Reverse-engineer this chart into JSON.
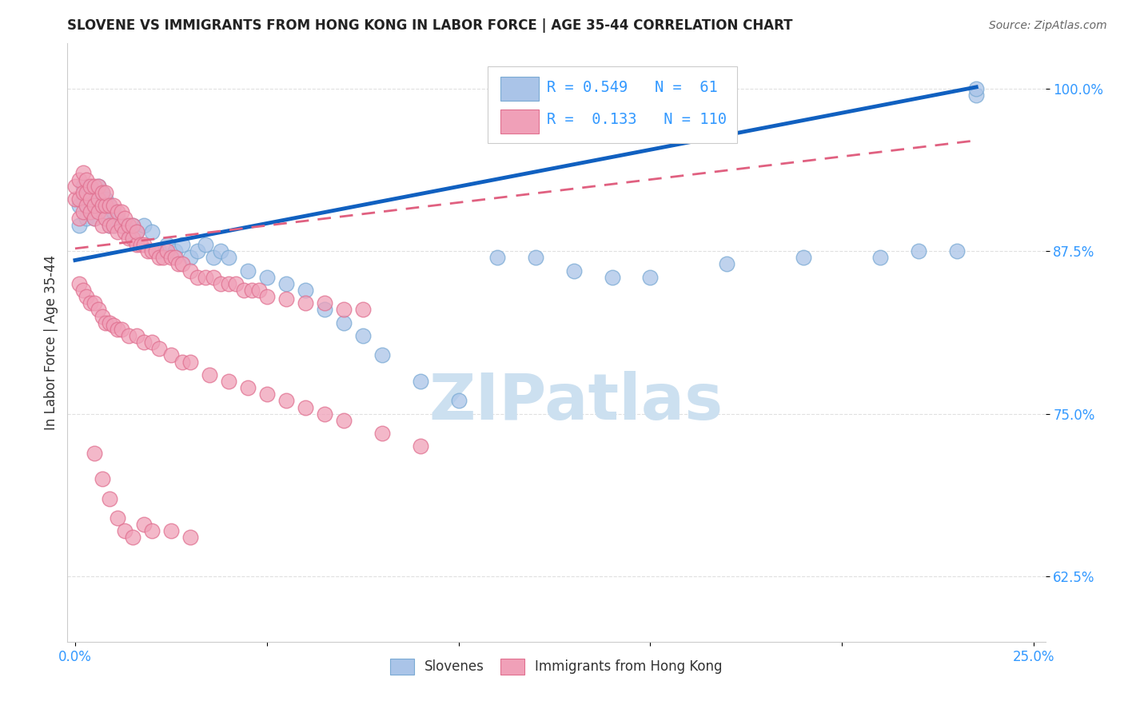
{
  "title": "SLOVENE VS IMMIGRANTS FROM HONG KONG IN LABOR FORCE | AGE 35-44 CORRELATION CHART",
  "source": "Source: ZipAtlas.com",
  "ylabel": "In Labor Force | Age 35-44",
  "xlim": [
    -0.002,
    0.253
  ],
  "ylim": [
    0.575,
    1.035
  ],
  "yticks": [
    0.625,
    0.75,
    0.875,
    1.0
  ],
  "ytick_labels": [
    "62.5%",
    "75.0%",
    "87.5%",
    "100.0%"
  ],
  "xticks": [
    0.0,
    0.05,
    0.1,
    0.15,
    0.2,
    0.25
  ],
  "xtick_labels": [
    "0.0%",
    "",
    "",
    "",
    "",
    "25.0%"
  ],
  "slovene_color": "#aac4e8",
  "slovene_edge": "#7aaad4",
  "hk_color": "#f0a0b8",
  "hk_edge": "#e07090",
  "trendline_slovene_color": "#1060c0",
  "trendline_hk_color": "#e06080",
  "background_color": "#ffffff",
  "grid_color": "#dddddd",
  "watermark_color": "#cce0f0",
  "tick_color": "#3399ff",
  "title_color": "#222222",
  "ylabel_color": "#333333",
  "source_color": "#666666",
  "slovene_x": [
    0.001,
    0.001,
    0.002,
    0.002,
    0.003,
    0.003,
    0.003,
    0.004,
    0.004,
    0.005,
    0.005,
    0.006,
    0.006,
    0.007,
    0.007,
    0.008,
    0.008,
    0.009,
    0.009,
    0.01,
    0.01,
    0.011,
    0.012,
    0.013,
    0.014,
    0.015,
    0.016,
    0.018,
    0.02,
    0.022,
    0.024,
    0.026,
    0.028,
    0.03,
    0.032,
    0.034,
    0.036,
    0.038,
    0.04,
    0.045,
    0.05,
    0.055,
    0.06,
    0.065,
    0.07,
    0.075,
    0.08,
    0.09,
    0.1,
    0.11,
    0.12,
    0.13,
    0.14,
    0.15,
    0.17,
    0.19,
    0.21,
    0.22,
    0.23,
    0.235,
    0.235
  ],
  "slovene_y": [
    0.895,
    0.91,
    0.915,
    0.925,
    0.9,
    0.91,
    0.92,
    0.905,
    0.915,
    0.9,
    0.92,
    0.91,
    0.925,
    0.905,
    0.92,
    0.9,
    0.915,
    0.895,
    0.91,
    0.895,
    0.905,
    0.9,
    0.895,
    0.895,
    0.89,
    0.895,
    0.89,
    0.895,
    0.89,
    0.875,
    0.88,
    0.875,
    0.88,
    0.87,
    0.875,
    0.88,
    0.87,
    0.875,
    0.87,
    0.86,
    0.855,
    0.85,
    0.845,
    0.83,
    0.82,
    0.81,
    0.795,
    0.775,
    0.76,
    0.87,
    0.87,
    0.86,
    0.855,
    0.855,
    0.865,
    0.87,
    0.87,
    0.875,
    0.875,
    0.995,
    1.0
  ],
  "hk_x": [
    0.0,
    0.0,
    0.001,
    0.001,
    0.001,
    0.002,
    0.002,
    0.002,
    0.003,
    0.003,
    0.003,
    0.004,
    0.004,
    0.004,
    0.005,
    0.005,
    0.005,
    0.006,
    0.006,
    0.006,
    0.007,
    0.007,
    0.007,
    0.008,
    0.008,
    0.008,
    0.009,
    0.009,
    0.01,
    0.01,
    0.011,
    0.011,
    0.012,
    0.012,
    0.013,
    0.013,
    0.014,
    0.014,
    0.015,
    0.015,
    0.016,
    0.016,
    0.017,
    0.018,
    0.019,
    0.02,
    0.021,
    0.022,
    0.023,
    0.024,
    0.025,
    0.026,
    0.027,
    0.028,
    0.03,
    0.032,
    0.034,
    0.036,
    0.038,
    0.04,
    0.042,
    0.044,
    0.046,
    0.048,
    0.05,
    0.055,
    0.06,
    0.065,
    0.07,
    0.075,
    0.001,
    0.002,
    0.003,
    0.004,
    0.005,
    0.006,
    0.007,
    0.008,
    0.009,
    0.01,
    0.011,
    0.012,
    0.014,
    0.016,
    0.018,
    0.02,
    0.022,
    0.025,
    0.028,
    0.03,
    0.035,
    0.04,
    0.045,
    0.05,
    0.055,
    0.06,
    0.065,
    0.07,
    0.08,
    0.09,
    0.005,
    0.007,
    0.009,
    0.011,
    0.013,
    0.015,
    0.018,
    0.02,
    0.025,
    0.03
  ],
  "hk_y": [
    0.915,
    0.925,
    0.9,
    0.915,
    0.93,
    0.905,
    0.92,
    0.935,
    0.91,
    0.92,
    0.93,
    0.905,
    0.915,
    0.925,
    0.9,
    0.91,
    0.925,
    0.905,
    0.915,
    0.925,
    0.895,
    0.91,
    0.92,
    0.9,
    0.91,
    0.92,
    0.895,
    0.91,
    0.895,
    0.91,
    0.89,
    0.905,
    0.895,
    0.905,
    0.89,
    0.9,
    0.885,
    0.895,
    0.885,
    0.895,
    0.88,
    0.89,
    0.88,
    0.88,
    0.875,
    0.875,
    0.875,
    0.87,
    0.87,
    0.875,
    0.87,
    0.87,
    0.865,
    0.865,
    0.86,
    0.855,
    0.855,
    0.855,
    0.85,
    0.85,
    0.85,
    0.845,
    0.845,
    0.845,
    0.84,
    0.838,
    0.835,
    0.835,
    0.83,
    0.83,
    0.85,
    0.845,
    0.84,
    0.835,
    0.835,
    0.83,
    0.825,
    0.82,
    0.82,
    0.818,
    0.815,
    0.815,
    0.81,
    0.81,
    0.805,
    0.805,
    0.8,
    0.795,
    0.79,
    0.79,
    0.78,
    0.775,
    0.77,
    0.765,
    0.76,
    0.755,
    0.75,
    0.745,
    0.735,
    0.725,
    0.72,
    0.7,
    0.685,
    0.67,
    0.66,
    0.655,
    0.665,
    0.66,
    0.66,
    0.655
  ],
  "trendline_slovene_x0": 0.0,
  "trendline_slovene_x1": 0.235,
  "trendline_slovene_y0": 0.868,
  "trendline_slovene_y1": 1.001,
  "trendline_hk_x0": 0.0,
  "trendline_hk_x1": 0.235,
  "trendline_hk_y0": 0.877,
  "trendline_hk_y1": 0.96
}
